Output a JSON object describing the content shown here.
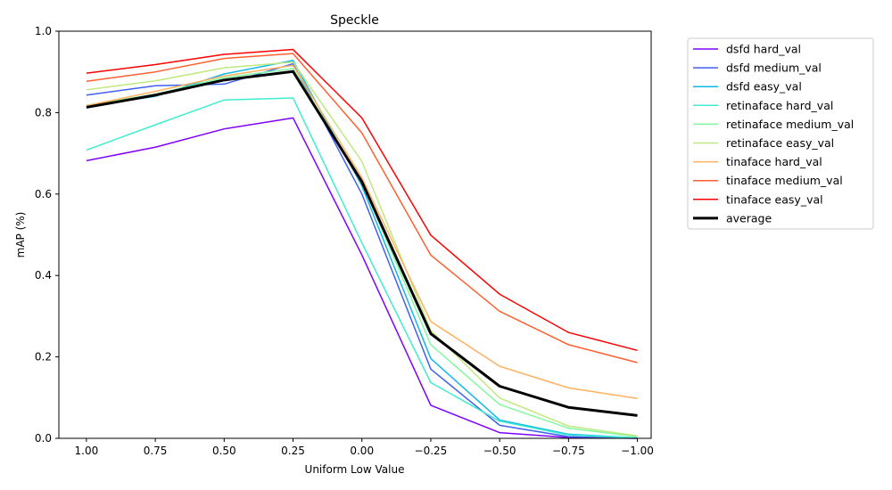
{
  "chart_data": {
    "type": "line",
    "title": "Speckle",
    "xlabel": "Uniform Low Value",
    "ylabel": "mAP (%)",
    "x": [
      1.0,
      0.75,
      0.5,
      0.25,
      0.0,
      -0.25,
      -0.5,
      -0.75,
      -1.0
    ],
    "xlim": [
      1.1,
      -1.05
    ],
    "ylim": [
      0,
      1.0
    ],
    "x_inverted": true,
    "grid": false,
    "legend_position": "outside-right",
    "xticks": [
      "1.00",
      "0.75",
      "0.50",
      "0.25",
      "0.00",
      "−0.25",
      "−0.50",
      "−0.75",
      "−1.00"
    ],
    "yticks": [
      "0.0",
      "0.2",
      "0.4",
      "0.6",
      "0.8",
      "1.0"
    ],
    "series": [
      {
        "name": "dsfd hard_val",
        "color": "#7f00ff",
        "values": [
          0.682,
          0.715,
          0.76,
          0.787,
          0.45,
          0.081,
          0.014,
          0.002,
          0.0
        ]
      },
      {
        "name": "dsfd medium_val",
        "color": "#4060f0",
        "values": [
          0.843,
          0.866,
          0.87,
          0.92,
          0.6,
          0.17,
          0.032,
          0.004,
          0.0
        ]
      },
      {
        "name": "dsfd easy_val",
        "color": "#10b8e8",
        "values": [
          0.815,
          0.84,
          0.895,
          0.928,
          0.62,
          0.196,
          0.045,
          0.01,
          0.001
        ]
      },
      {
        "name": "retinaface hard_val",
        "color": "#40ecd0",
        "values": [
          0.708,
          0.77,
          0.831,
          0.836,
          0.48,
          0.137,
          0.042,
          0.008,
          0.001
        ]
      },
      {
        "name": "retinaface medium_val",
        "color": "#80f8a0",
        "values": [
          0.818,
          0.845,
          0.886,
          0.908,
          0.63,
          0.23,
          0.083,
          0.025,
          0.004
        ]
      },
      {
        "name": "retinaface easy_val",
        "color": "#c0e880",
        "values": [
          0.856,
          0.878,
          0.91,
          0.924,
          0.68,
          0.265,
          0.099,
          0.03,
          0.006
        ]
      },
      {
        "name": "tinaface hard_val",
        "color": "#ffb060",
        "values": [
          0.817,
          0.852,
          0.89,
          0.916,
          0.64,
          0.287,
          0.177,
          0.124,
          0.098
        ]
      },
      {
        "name": "tinaface medium_val",
        "color": "#ff6030",
        "values": [
          0.877,
          0.9,
          0.933,
          0.945,
          0.75,
          0.45,
          0.312,
          0.23,
          0.186
        ]
      },
      {
        "name": "tinaface easy_val",
        "color": "#ff0000",
        "values": [
          0.897,
          0.918,
          0.943,
          0.955,
          0.787,
          0.499,
          0.354,
          0.26,
          0.216
        ]
      },
      {
        "name": "average",
        "color": "#000000",
        "bold": true,
        "values": [
          0.813,
          0.843,
          0.88,
          0.901,
          0.63,
          0.257,
          0.128,
          0.076,
          0.056
        ]
      }
    ]
  }
}
